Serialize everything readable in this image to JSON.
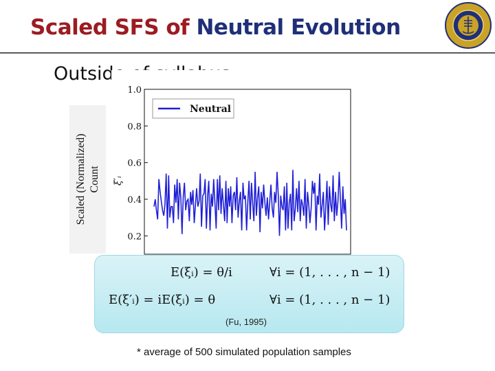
{
  "slide": {
    "title_part1": "Scaled SFS of ",
    "title_part2": "Neutral Evolution",
    "subtitle": "Outside of syllabus",
    "ylabel_line1": "Scaled (Normalized)",
    "ylabel_line2": "Count",
    "formula_line1_lhs": "E(ξᵢ) = θ/i",
    "formula_line1_rhs": "∀i = (1, . . . , n − 1)",
    "formula_line2_lhs": "E(ξ′ᵢ) = iE(ξᵢ) = θ",
    "formula_line2_rhs": "∀i = (1, . . . , n − 1)",
    "citation": "(Fu, 1995)",
    "note": "* average of 500 simulated population samples",
    "colors": {
      "title_red": "#9b1c21",
      "title_blue": "#1f2f78",
      "series": "#1f1fd6"
    },
    "logo_icon": "uc-san-diego-seal-icon"
  },
  "chart_data": {
    "type": "line",
    "ylabel": "ξ′ᵢ",
    "yticks": [
      "0.2",
      "0.4",
      "0.6",
      "0.8",
      "1.0"
    ],
    "ylim": [
      0.1,
      1.0
    ],
    "legend": "top-left",
    "series": [
      {
        "name": "Neutral",
        "values": [
          0.36,
          0.4,
          0.34,
          0.29,
          0.51,
          0.44,
          0.39,
          0.34,
          0.31,
          0.37,
          0.54,
          0.24,
          0.53,
          0.3,
          0.36,
          0.36,
          0.27,
          0.48,
          0.38,
          0.51,
          0.29,
          0.49,
          0.41,
          0.21,
          0.41,
          0.49,
          0.34,
          0.39,
          0.4,
          0.28,
          0.44,
          0.37,
          0.45,
          0.27,
          0.37,
          0.46,
          0.36,
          0.39,
          0.54,
          0.25,
          0.42,
          0.43,
          0.51,
          0.24,
          0.42,
          0.5,
          0.23,
          0.43,
          0.36,
          0.51,
          0.38,
          0.24,
          0.51,
          0.34,
          0.53,
          0.32,
          0.46,
          0.37,
          0.28,
          0.5,
          0.27,
          0.46,
          0.36,
          0.47,
          0.27,
          0.42,
          0.44,
          0.34,
          0.52,
          0.3,
          0.39,
          0.44,
          0.23,
          0.49,
          0.4,
          0.42,
          0.23,
          0.39,
          0.5,
          0.29,
          0.49,
          0.38,
          0.28,
          0.55,
          0.31,
          0.41,
          0.47,
          0.22,
          0.44,
          0.35,
          0.48,
          0.38,
          0.31,
          0.41,
          0.29,
          0.39,
          0.48,
          0.35,
          0.3,
          0.44,
          0.38,
          0.55,
          0.42,
          0.2,
          0.42,
          0.36,
          0.34,
          0.47,
          0.23,
          0.49,
          0.24,
          0.38,
          0.43,
          0.23,
          0.56,
          0.28,
          0.35,
          0.46,
          0.33,
          0.5,
          0.28,
          0.4,
          0.37,
          0.31,
          0.51,
          0.24,
          0.44,
          0.37,
          0.27,
          0.35,
          0.5,
          0.43,
          0.49,
          0.23,
          0.42,
          0.37,
          0.54,
          0.3,
          0.37,
          0.44,
          0.23,
          0.36,
          0.5,
          0.26,
          0.47,
          0.37,
          0.33,
          0.53,
          0.28,
          0.44,
          0.31,
          0.39,
          0.55,
          0.4,
          0.24,
          0.47,
          0.32,
          0.4,
          0.23
        ]
      }
    ]
  }
}
